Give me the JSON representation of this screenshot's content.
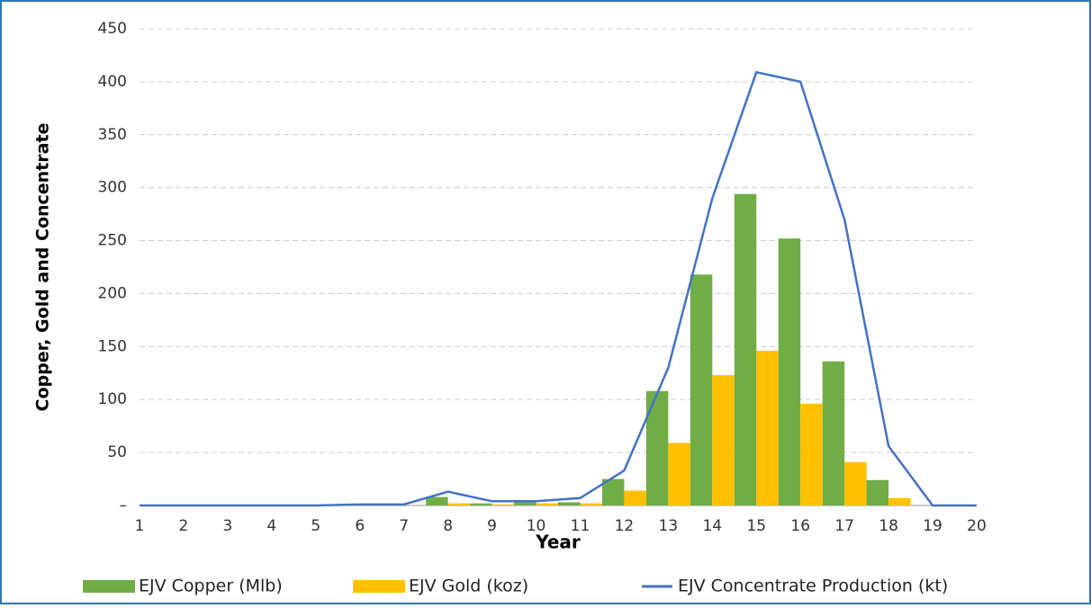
{
  "chart_data": {
    "type": "bar",
    "x_label": "Year",
    "y_label": "Copper, Gold and  Concentrate",
    "categories": [
      "1",
      "2",
      "3",
      "4",
      "5",
      "6",
      "7",
      "8",
      "9",
      "10",
      "11",
      "12",
      "13",
      "14",
      "15",
      "16",
      "17",
      "18",
      "19",
      "20"
    ],
    "series": [
      {
        "name": "EJV Copper (Mlb)",
        "color": "#70ad47",
        "type": "bar",
        "values": [
          0,
          0,
          0,
          0,
          0,
          0,
          0,
          8,
          2,
          3,
          3,
          25,
          108,
          218,
          294,
          252,
          136,
          24,
          0,
          0
        ]
      },
      {
        "name": "EJV Gold (koz)",
        "color": "#ffc000",
        "type": "bar",
        "values": [
          0,
          0,
          0,
          0,
          0,
          0,
          0,
          2,
          1,
          2,
          2,
          14,
          59,
          123,
          146,
          96,
          41,
          7,
          0,
          0
        ]
      },
      {
        "name": "EJV Concentrate Production (kt)",
        "color": "#4472c4",
        "type": "line",
        "values": [
          0,
          0,
          0,
          0,
          0,
          1,
          1,
          13,
          4,
          4,
          7,
          33,
          130,
          290,
          409,
          400,
          270,
          56,
          0,
          0
        ]
      }
    ],
    "ylim": [
      0,
      450
    ],
    "yticks": [
      {
        "value": 0,
        "label": "–"
      },
      50,
      100,
      150,
      200,
      250,
      300,
      350,
      400,
      450
    ],
    "grid": true,
    "legend": "bottom"
  }
}
